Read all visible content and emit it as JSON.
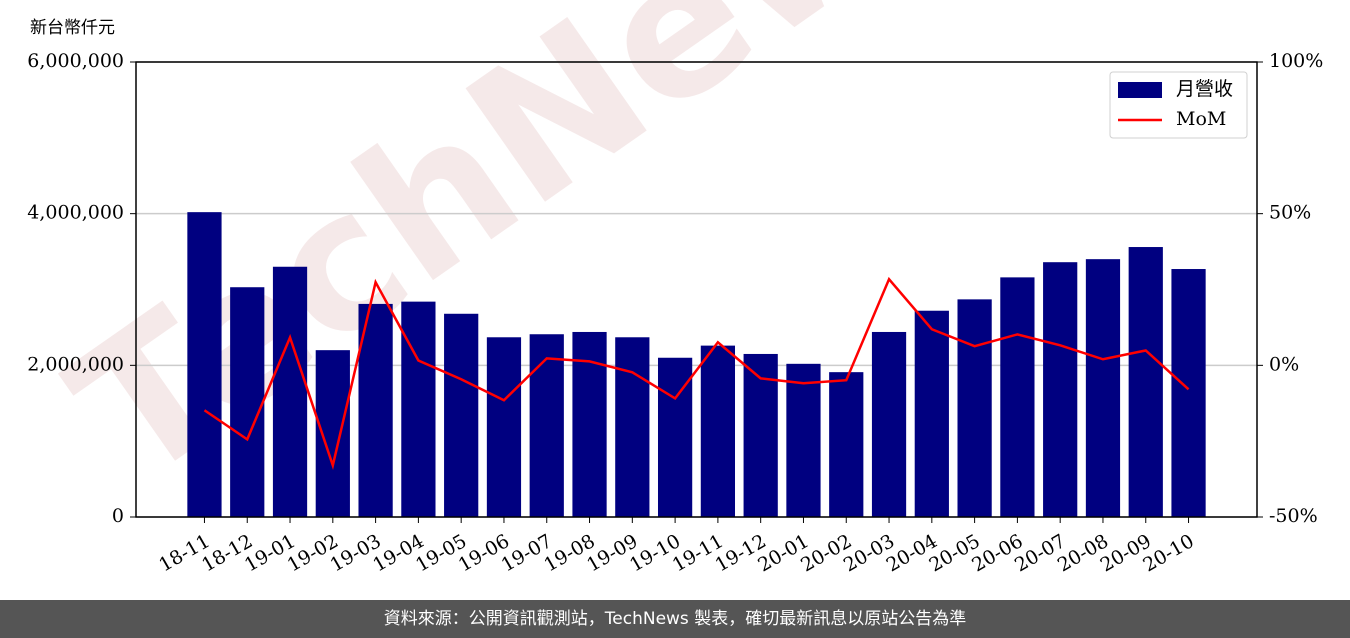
{
  "chart_data": {
    "type": "bar-line",
    "y_label": "新台幣仟元",
    "watermark": "TechNews",
    "footer": "資料來源：公開資訊觀測站，TechNews 製表，確切最新訊息以原站公告為準",
    "categories": [
      "18-11",
      "18-12",
      "19-01",
      "19-02",
      "19-03",
      "19-04",
      "19-05",
      "19-06",
      "19-07",
      "19-08",
      "19-09",
      "19-10",
      "19-11",
      "19-12",
      "20-01",
      "20-02",
      "20-03",
      "20-04",
      "20-05",
      "20-06",
      "20-07",
      "20-08",
      "20-09",
      "20-10"
    ],
    "series": [
      {
        "name": "月營收",
        "type": "bar",
        "color": "#000080",
        "values": [
          4020000,
          3030000,
          3300000,
          2200000,
          2810000,
          2840000,
          2680000,
          2370000,
          2410000,
          2440000,
          2370000,
          2100000,
          2260000,
          2150000,
          2020000,
          1910000,
          2440000,
          2720000,
          2870000,
          3160000,
          3360000,
          3400000,
          3560000,
          3270000
        ]
      },
      {
        "name": "MoM",
        "type": "line",
        "color": "#ff0000",
        "axis": "y2",
        "values": [
          -14.8,
          -24.4,
          9.2,
          -33.0,
          27.4,
          1.6,
          -4.6,
          -11.5,
          2.3,
          1.3,
          -2.3,
          -10.9,
          7.6,
          -4.3,
          -5.9,
          -4.9,
          28.4,
          11.9,
          6.3,
          10.2,
          6.6,
          2.0,
          4.9,
          -7.9
        ]
      }
    ],
    "ylim": [
      0,
      6000000
    ],
    "yticks": [
      0,
      {
        "value": 2000000,
        "label": "2,000,000"
      },
      {
        "value": 4000000,
        "label": "4,000,000"
      },
      {
        "value": 6000000,
        "label": "6,000,000"
      }
    ],
    "y2lim": [
      -50,
      100
    ],
    "y2ticks": [
      {
        "value": -50,
        "label": "-50%"
      },
      {
        "value": 0,
        "label": "0%"
      },
      {
        "value": 50,
        "label": "50%"
      },
      {
        "value": 100,
        "label": "100%"
      }
    ],
    "grid": true,
    "legend": "upper right"
  }
}
